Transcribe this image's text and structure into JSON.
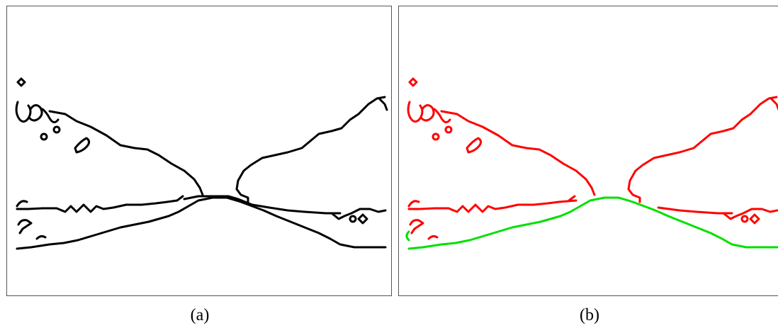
{
  "panels": [
    {
      "caption": "(a)",
      "content": "edge-map"
    },
    {
      "caption": "(b)",
      "content": "classified-edge-map"
    }
  ],
  "colors": {
    "edge": "#000000",
    "class_1": "#ff0000",
    "class_2": "#00e000",
    "border": "#555555"
  }
}
